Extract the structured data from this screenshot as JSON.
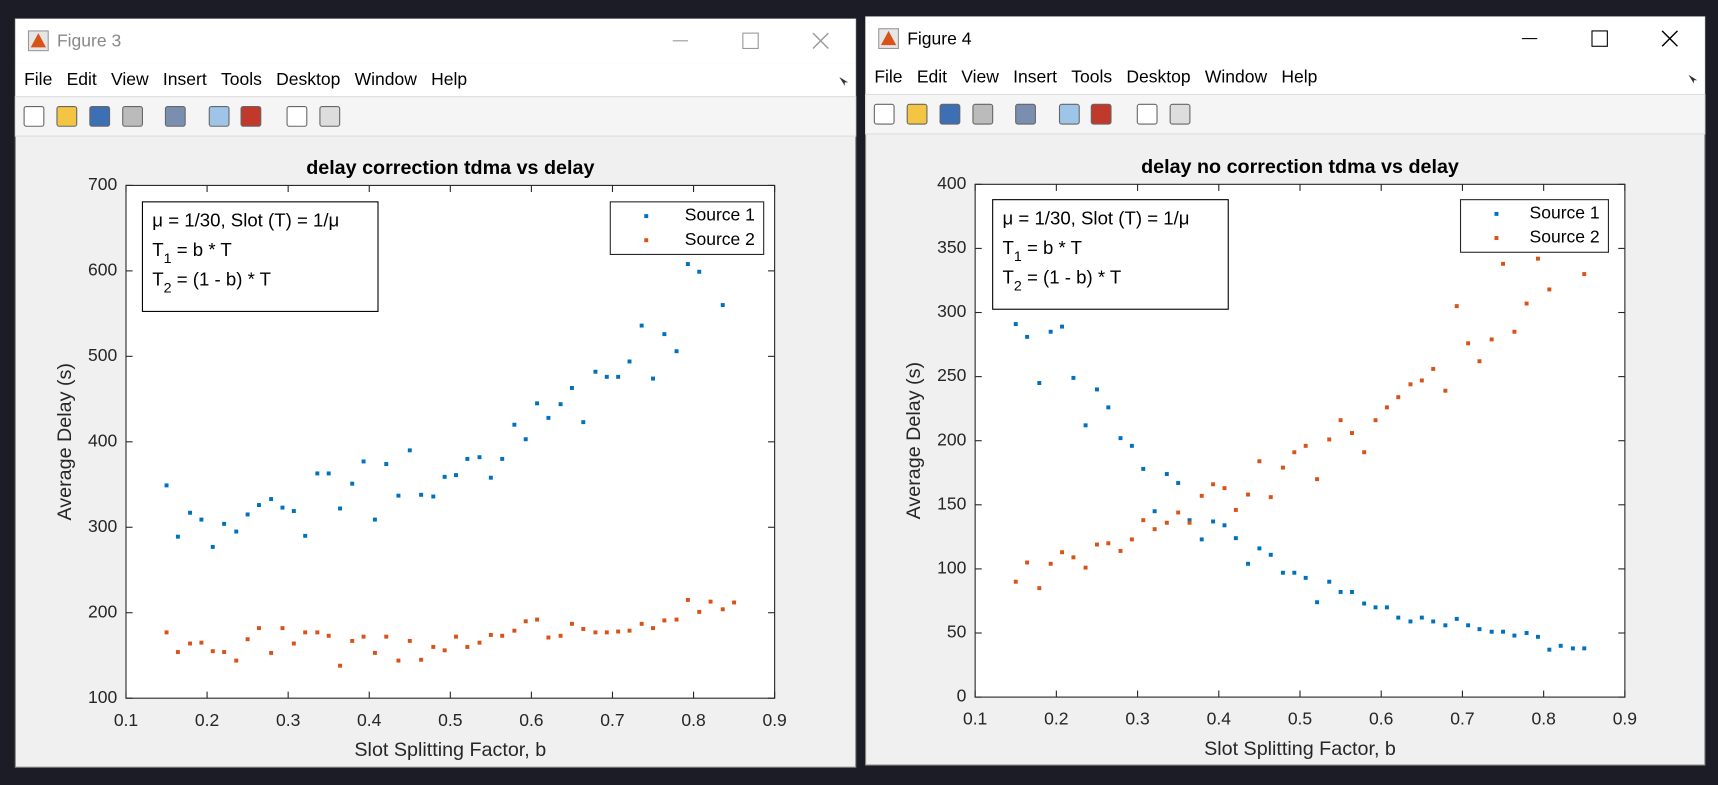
{
  "windows": [
    {
      "title": "Figure 3",
      "menu": [
        "File",
        "Edit",
        "View",
        "Insert",
        "Tools",
        "Desktop",
        "Window",
        "Help"
      ]
    },
    {
      "title": "Figure 4",
      "menu": [
        "File",
        "Edit",
        "View",
        "Insert",
        "Tools",
        "Desktop",
        "Window",
        "Help"
      ]
    }
  ],
  "chart_data": [
    {
      "type": "scatter",
      "title": "delay correction tdma vs delay",
      "xlabel": "Slot Splitting Factor, b",
      "ylabel": "Average Delay (s)",
      "annotation": [
        [
          "μ = 1/30, Slot (T) = 1/μ"
        ],
        [
          "T",
          "1",
          " = b * T"
        ],
        [
          "T",
          "2",
          " = (1 - b) * T"
        ]
      ],
      "x": [
        0.15,
        0.164,
        0.179,
        0.193,
        0.207,
        0.221,
        0.236,
        0.25,
        0.264,
        0.279,
        0.293,
        0.307,
        0.321,
        0.336,
        0.35,
        0.364,
        0.379,
        0.393,
        0.407,
        0.421,
        0.436,
        0.45,
        0.464,
        0.479,
        0.493,
        0.507,
        0.521,
        0.536,
        0.55,
        0.564,
        0.579,
        0.593,
        0.607,
        0.621,
        0.636,
        0.65,
        0.664,
        0.679,
        0.693,
        0.707,
        0.721,
        0.736,
        0.75,
        0.764,
        0.779,
        0.793,
        0.807,
        0.821,
        0.836,
        0.85
      ],
      "series": [
        {
          "name": "Source 1",
          "color": "#0072bd",
          "values": [
            349,
            289,
            317,
            309,
            277,
            304,
            295,
            315,
            326,
            333,
            323,
            319,
            290,
            363,
            363,
            322,
            351,
            377,
            309,
            374,
            337,
            390,
            338,
            336,
            359,
            361,
            380,
            382,
            358,
            380,
            420,
            403,
            445,
            428,
            444,
            463,
            423,
            482,
            476,
            476,
            494,
            536,
            474,
            526,
            506,
            608,
            599,
            650,
            560,
            640
          ]
        },
        {
          "name": "Source 2",
          "color": "#d95319",
          "values": [
            177,
            154,
            164,
            165,
            155,
            154,
            144,
            169,
            182,
            153,
            182,
            164,
            177,
            177,
            173,
            138,
            167,
            172,
            153,
            172,
            144,
            167,
            145,
            160,
            156,
            172,
            160,
            165,
            174,
            173,
            179,
            190,
            192,
            171,
            173,
            187,
            181,
            177,
            177,
            178,
            179,
            187,
            182,
            191,
            192,
            215,
            201,
            213,
            204,
            212
          ]
        }
      ],
      "xlim": [
        0.1,
        0.9
      ],
      "xticks": [
        0.1,
        0.2,
        0.3,
        0.4,
        0.5,
        0.6,
        0.7,
        0.8,
        0.9
      ],
      "ylim": [
        100,
        700
      ],
      "yticks": [
        100,
        200,
        300,
        400,
        500,
        600,
        700
      ],
      "legend": "upper right"
    },
    {
      "type": "scatter",
      "title": "delay no correction tdma vs delay",
      "xlabel": "Slot Splitting Factor, b",
      "ylabel": "Average Delay (s)",
      "annotation": [
        [
          "μ = 1/30, Slot (T) = 1/μ"
        ],
        [
          "T",
          "1",
          " = b * T"
        ],
        [
          "T",
          "2",
          " = (1 - b) * T"
        ]
      ],
      "x": [
        0.15,
        0.164,
        0.179,
        0.193,
        0.207,
        0.221,
        0.236,
        0.25,
        0.264,
        0.279,
        0.293,
        0.307,
        0.321,
        0.336,
        0.35,
        0.364,
        0.379,
        0.393,
        0.407,
        0.421,
        0.436,
        0.45,
        0.464,
        0.479,
        0.493,
        0.507,
        0.521,
        0.536,
        0.55,
        0.564,
        0.579,
        0.593,
        0.607,
        0.621,
        0.636,
        0.65,
        0.664,
        0.679,
        0.693,
        0.707,
        0.721,
        0.736,
        0.75,
        0.764,
        0.779,
        0.793,
        0.807,
        0.821,
        0.836,
        0.85
      ],
      "series": [
        {
          "name": "Source 1",
          "color": "#0072bd",
          "values": [
            291,
            281,
            245,
            285,
            289,
            249,
            212,
            240,
            226,
            202,
            196,
            178,
            145,
            174,
            167,
            138,
            123,
            137,
            134,
            124,
            104,
            116,
            111,
            97,
            97,
            93,
            74,
            90,
            82,
            82,
            73,
            70,
            70,
            62,
            59,
            62,
            59,
            56,
            61,
            56,
            53,
            51,
            51,
            48,
            50,
            47,
            37,
            40,
            38,
            38
          ]
        },
        {
          "name": "Source 2",
          "color": "#d95319",
          "values": [
            90,
            105,
            85,
            104,
            113,
            109,
            101,
            119,
            120,
            114,
            123,
            138,
            131,
            136,
            144,
            136,
            157,
            166,
            163,
            146,
            158,
            184,
            156,
            179,
            191,
            196,
            170,
            201,
            216,
            206,
            191,
            216,
            226,
            234,
            244,
            247,
            256,
            239,
            305,
            276,
            262,
            279,
            338,
            285,
            307,
            342,
            318,
            360,
            370,
            330
          ]
        }
      ],
      "xlim": [
        0.1,
        0.9
      ],
      "xticks": [
        0.1,
        0.2,
        0.3,
        0.4,
        0.5,
        0.6,
        0.7,
        0.8,
        0.9
      ],
      "ylim": [
        0,
        400
      ],
      "yticks": [
        0,
        50,
        100,
        150,
        200,
        250,
        300,
        350,
        400
      ],
      "legend": "upper right"
    }
  ]
}
